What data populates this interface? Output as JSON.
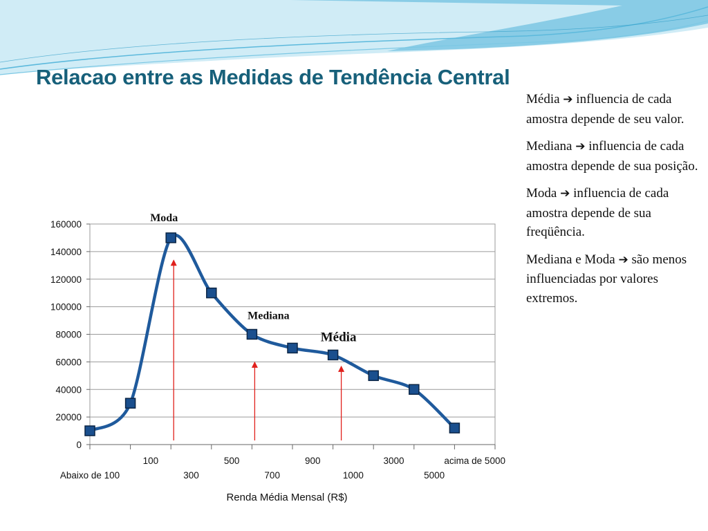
{
  "slide": {
    "title": "Relacao entre as Medidas de Tendência Central"
  },
  "notes": [
    {
      "term": "Média",
      "text": "influencia de cada amostra depende de seu valor."
    },
    {
      "term": "Mediana",
      "text": "influencia de cada amostra depende de sua posição."
    },
    {
      "term": "Moda",
      "text": "influencia de cada amostra depende de sua freqüência."
    },
    {
      "term": "Mediana e Moda",
      "text": "são menos influenciadas por valores extremos."
    }
  ],
  "colors": {
    "title": "#17607a",
    "series_line": "#1f5a9c",
    "marker_fill": "#1a4f8e",
    "annotation_arrow": "#e0201c",
    "wave_light": "#a9dcef",
    "wave_dark": "#4fb3d9"
  },
  "icons": {
    "note_arrow": "arrow-right-icon"
  },
  "chart_data": {
    "type": "line",
    "categories": [
      "Abaixo de 100",
      "100",
      "300",
      "500",
      "700",
      "900",
      "1000",
      "3000",
      "5000",
      "acima de 5000"
    ],
    "series": [
      {
        "values": [
          10000,
          30000,
          150000,
          110000,
          80000,
          70000,
          65000,
          50000,
          40000,
          12000
        ]
      }
    ],
    "xlabel": "Renda Média Mensal (R$)",
    "ylabel": "",
    "ylim": [
      0,
      160000
    ],
    "yticks": [
      0,
      20000,
      40000,
      60000,
      80000,
      100000,
      120000,
      140000,
      160000
    ],
    "grid": true,
    "smooth": true,
    "legend": "none",
    "annotations": [
      {
        "label": "Moda",
        "category_index": 2,
        "arrow_to": 132000
      },
      {
        "label": "Mediana",
        "category_index": 4,
        "arrow_to": 58000
      },
      {
        "label": "Média",
        "category_index": 6,
        "arrow_to": 55000
      }
    ]
  }
}
